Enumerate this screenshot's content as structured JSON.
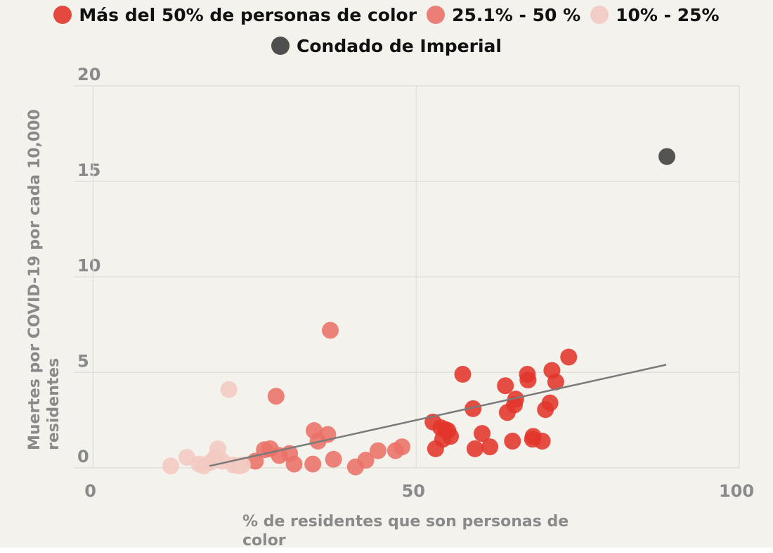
{
  "chart_data": {
    "type": "scatter",
    "x_label": "% de residentes que son personas de color",
    "y_label": "Muertes por COVID-19 por cada 10,000 residentes",
    "xlim": [
      -3,
      100
    ],
    "ylim": [
      0,
      20
    ],
    "xticks": [
      0,
      50,
      100
    ],
    "yticks": [
      0,
      5,
      10,
      15,
      20
    ],
    "grid": true,
    "series": [
      {
        "name": "Más del 50% de personas de color",
        "color": "#e2362b",
        "x": [
          52.6,
          53.0,
          53.8,
          54.5,
          54.9,
          54.1,
          55.3,
          57.2,
          58.8,
          59.1,
          60.2,
          61.4,
          63.8,
          64.1,
          64.9,
          65.2,
          65.4,
          67.2,
          67.3,
          68.0,
          68.1,
          69.5,
          70.0,
          70.7,
          71.0,
          71.6,
          73.6
        ],
        "values": [
          2.4,
          1.0,
          2.1,
          2.0,
          1.95,
          1.5,
          1.65,
          4.9,
          3.1,
          1.0,
          1.8,
          1.1,
          4.3,
          2.9,
          1.4,
          3.3,
          3.6,
          4.9,
          4.6,
          1.5,
          1.65,
          1.4,
          3.05,
          3.4,
          5.1,
          4.5,
          5.8
        ]
      },
      {
        "name": "25.1% - 50 %",
        "color": "#ea7168",
        "x": [
          25.1,
          26.5,
          27.4,
          28.3,
          28.8,
          30.4,
          31.1,
          34.0,
          34.2,
          34.8,
          36.3,
          36.7,
          37.2,
          40.6,
          42.2,
          44.1,
          46.8,
          47.8
        ],
        "values": [
          0.35,
          0.95,
          1.0,
          3.75,
          0.65,
          0.75,
          0.2,
          0.2,
          1.95,
          1.4,
          1.75,
          7.2,
          0.45,
          0.05,
          0.4,
          0.9,
          0.9,
          1.1
        ]
      },
      {
        "name": "10% - 25%",
        "color": "#f3c9c2",
        "x": [
          12.0,
          14.5,
          16.4,
          17.1,
          18.2,
          18.9,
          19.3,
          20.0,
          21.0,
          21.7,
          22.6,
          23.1
        ],
        "values": [
          0.1,
          0.55,
          0.2,
          0.1,
          0.3,
          0.55,
          1.0,
          0.35,
          4.1,
          0.15,
          0.1,
          0.15
        ]
      },
      {
        "name": "Condado de Imperial",
        "color": "#3d3d3d",
        "x": [
          88.8
        ],
        "values": [
          16.3
        ]
      }
    ],
    "trendline": {
      "color": "#7a7a7a",
      "x": [
        18.0,
        88.7
      ],
      "values": [
        0.1,
        5.4
      ]
    }
  }
}
